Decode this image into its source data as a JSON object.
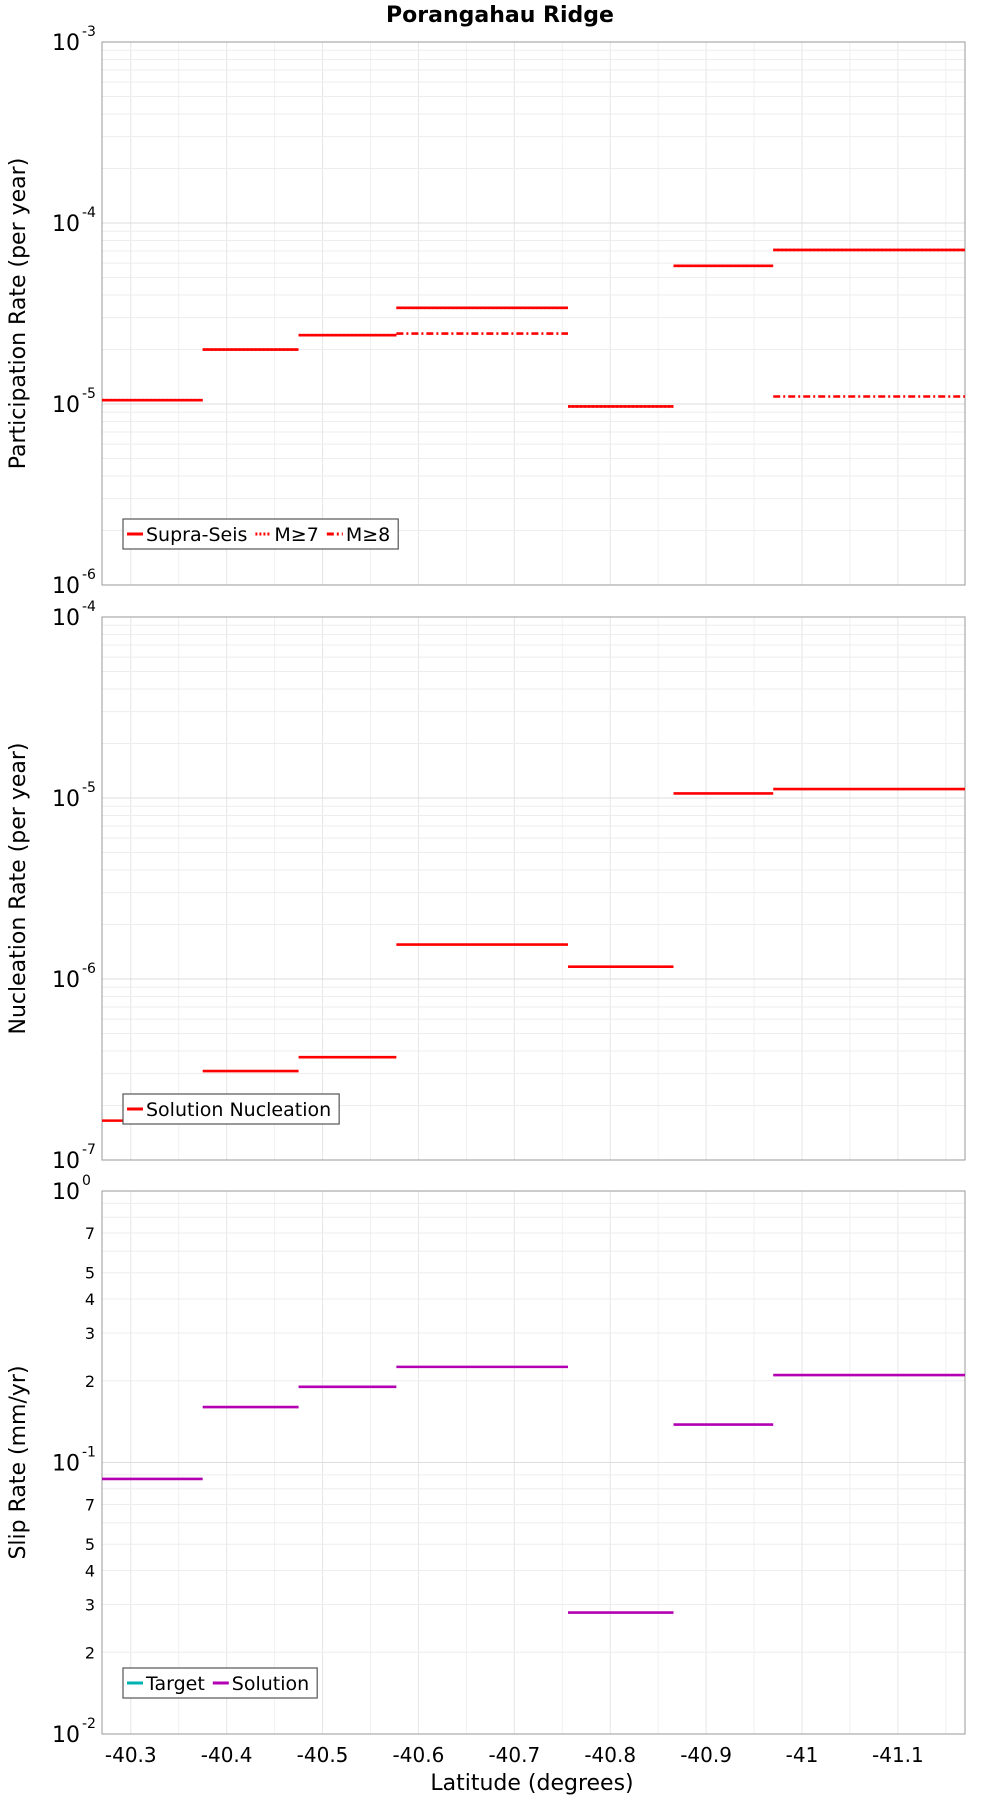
{
  "title": "Porangahau Ridge",
  "x_axis": {
    "label": "Latitude (degrees)",
    "reversed": true,
    "ticks": [
      -40.3,
      -40.4,
      -40.5,
      -40.6,
      -40.7,
      -40.8,
      -40.9,
      -41,
      -41.1
    ],
    "tick_labels": [
      "-40.3",
      "-40.4",
      "-40.5",
      "-40.6",
      "-40.7",
      "-40.8",
      "-40.9",
      "-41",
      "-41.1"
    ]
  },
  "chart_data": [
    {
      "type": "line",
      "scale": "log",
      "ylabel": "Participation Rate (per year)",
      "xlim": [
        -40.27,
        -41.17
      ],
      "ylim": [
        1e-06,
        0.001
      ],
      "y_tick_labels": [
        {
          "base": "10",
          "exp": "-6"
        },
        {
          "base": "10",
          "exp": "-5"
        },
        {
          "base": "10",
          "exp": "-4"
        },
        {
          "base": "10",
          "exp": "-3"
        }
      ],
      "legend": {
        "placement": "bottom-left",
        "entries": [
          {
            "label": "Supra-Seis",
            "style": "solid",
            "color": "#ff0000"
          },
          {
            "label": "M≥7",
            "style": "dotted",
            "color": "#ff0000"
          },
          {
            "label": "M≥8",
            "style": "dashdot",
            "color": "#ff0000"
          }
        ]
      },
      "series": [
        {
          "name": "Supra-Seis",
          "style": "solid",
          "color": "#ff0000",
          "segments": [
            {
              "x": [
                -40.27,
                -40.375
              ],
              "y": 1.05e-05
            },
            {
              "x": [
                -40.375,
                -40.475
              ],
              "y": 2e-05
            },
            {
              "x": [
                -40.475,
                -40.577
              ],
              "y": 2.4e-05
            },
            {
              "x": [
                -40.577,
                -40.756
              ],
              "y": 3.4e-05
            },
            {
              "x": [
                -40.756,
                -40.866
              ],
              "y": 9.7e-06
            },
            {
              "x": [
                -40.866,
                -40.97
              ],
              "y": 5.8e-05
            },
            {
              "x": [
                -40.97,
                -41.17
              ],
              "y": 7.1e-05
            }
          ]
        },
        {
          "name": "M≥7",
          "style": "dotted",
          "color": "#ff0000",
          "segments": [
            {
              "x": [
                -40.27,
                -40.375
              ],
              "y": 1.05e-05
            },
            {
              "x": [
                -40.375,
                -40.475
              ],
              "y": 2e-05
            },
            {
              "x": [
                -40.475,
                -40.577
              ],
              "y": 2.4e-05
            },
            {
              "x": [
                -40.577,
                -40.756
              ],
              "y": 3.4e-05
            },
            {
              "x": [
                -40.756,
                -40.866
              ],
              "y": 9.7e-06
            },
            {
              "x": [
                -40.866,
                -40.97
              ],
              "y": 5.8e-05
            },
            {
              "x": [
                -40.97,
                -41.17
              ],
              "y": 7.1e-05
            }
          ]
        },
        {
          "name": "M≥8",
          "style": "dashdot",
          "color": "#ff0000",
          "segments": [
            {
              "x": [
                -40.577,
                -40.756
              ],
              "y": 2.45e-05
            },
            {
              "x": [
                -40.97,
                -41.17
              ],
              "y": 1.1e-05
            }
          ]
        }
      ]
    },
    {
      "type": "line",
      "scale": "log",
      "ylabel": "Nucleation Rate (per year)",
      "xlim": [
        -40.27,
        -41.17
      ],
      "ylim": [
        1e-07,
        0.0001
      ],
      "y_tick_labels": [
        {
          "base": "10",
          "exp": "-7"
        },
        {
          "base": "10",
          "exp": "-6"
        },
        {
          "base": "10",
          "exp": "-5"
        },
        {
          "base": "10",
          "exp": "-4"
        }
      ],
      "legend": {
        "placement": "bottom-left",
        "entries": [
          {
            "label": "Solution Nucleation",
            "style": "solid",
            "color": "#ff0000"
          }
        ]
      },
      "series": [
        {
          "name": "Solution Nucleation",
          "style": "solid",
          "color": "#ff0000",
          "segments": [
            {
              "x": [
                -40.27,
                -40.375
              ],
              "y": 1.65e-07
            },
            {
              "x": [
                -40.375,
                -40.475
              ],
              "y": 3.1e-07
            },
            {
              "x": [
                -40.475,
                -40.577
              ],
              "y": 3.7e-07
            },
            {
              "x": [
                -40.577,
                -40.756
              ],
              "y": 1.55e-06
            },
            {
              "x": [
                -40.756,
                -40.866
              ],
              "y": 1.17e-06
            },
            {
              "x": [
                -40.866,
                -40.97
              ],
              "y": 1.06e-05
            },
            {
              "x": [
                -40.97,
                -41.17
              ],
              "y": 1.12e-05
            }
          ]
        }
      ]
    },
    {
      "type": "line",
      "scale": "log",
      "ylabel": "Slip Rate (mm/yr)",
      "xlim": [
        -40.27,
        -41.17
      ],
      "ylim": [
        0.01,
        1
      ],
      "y_tick_labels": [
        {
          "base": "10",
          "exp": "-2"
        },
        {
          "base": "10",
          "exp": "-1"
        },
        {
          "base": "10",
          "exp": "0"
        }
      ],
      "y_minor_labels": [
        "2",
        "3",
        "4",
        "5",
        "7",
        "2",
        "3",
        "4",
        "5",
        "7"
      ],
      "legend": {
        "placement": "bottom-left",
        "entries": [
          {
            "label": "Target",
            "style": "solid",
            "color": "#00b3b3"
          },
          {
            "label": "Solution",
            "style": "solid",
            "color": "#b300b3"
          }
        ]
      },
      "series": [
        {
          "name": "Solution",
          "style": "solid",
          "color": "#b300b3",
          "segments": [
            {
              "x": [
                -40.27,
                -40.375
              ],
              "y": 0.087
            },
            {
              "x": [
                -40.375,
                -40.475
              ],
              "y": 0.16
            },
            {
              "x": [
                -40.475,
                -40.577
              ],
              "y": 0.19
            },
            {
              "x": [
                -40.577,
                -40.756
              ],
              "y": 0.225
            },
            {
              "x": [
                -40.756,
                -40.866
              ],
              "y": 0.028
            },
            {
              "x": [
                -40.866,
                -40.97
              ],
              "y": 0.138
            },
            {
              "x": [
                -40.97,
                -41.17
              ],
              "y": 0.21
            }
          ]
        }
      ]
    }
  ]
}
